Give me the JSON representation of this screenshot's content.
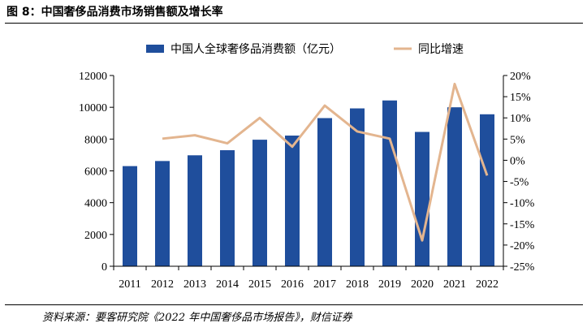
{
  "header": {
    "title": "图 8：中国奢侈品消费市场销售额及增长率"
  },
  "footer": {
    "source": "资料来源：要客研究院《2022 年中国奢侈品市场报告》，财信证券"
  },
  "chart_data": {
    "type": "bar",
    "categories": [
      "2011",
      "2012",
      "2013",
      "2014",
      "2015",
      "2016",
      "2017",
      "2018",
      "2019",
      "2020",
      "2021",
      "2022"
    ],
    "series": [
      {
        "name": "中国人全球奢侈品消费额（亿元）",
        "kind": "bar",
        "axis": "left",
        "color": "#1f4e9c",
        "values": [
          6300,
          6620,
          6980,
          7300,
          7960,
          8220,
          9320,
          9930,
          10430,
          8450,
          10000,
          9560
        ]
      },
      {
        "name": "同比增速",
        "kind": "line",
        "axis": "right",
        "color": "#e3b58f",
        "values": [
          null,
          5.1,
          5.9,
          4.0,
          10.0,
          3.2,
          12.9,
          6.8,
          5.1,
          -18.9,
          18.0,
          -3.6
        ]
      }
    ],
    "left_axis": {
      "min": 0,
      "max": 12000,
      "step": 2000,
      "tick_labels": [
        "0",
        "2000",
        "4000",
        "6000",
        "8000",
        "10000",
        "12000"
      ]
    },
    "right_axis": {
      "min": -25,
      "max": 20,
      "step": 5,
      "tick_labels": [
        "-25%",
        "-20%",
        "-15%",
        "-10%",
        "-5%",
        "0%",
        "5%",
        "10%",
        "15%",
        "20%"
      ]
    },
    "grid": false,
    "legend_position": "top"
  }
}
